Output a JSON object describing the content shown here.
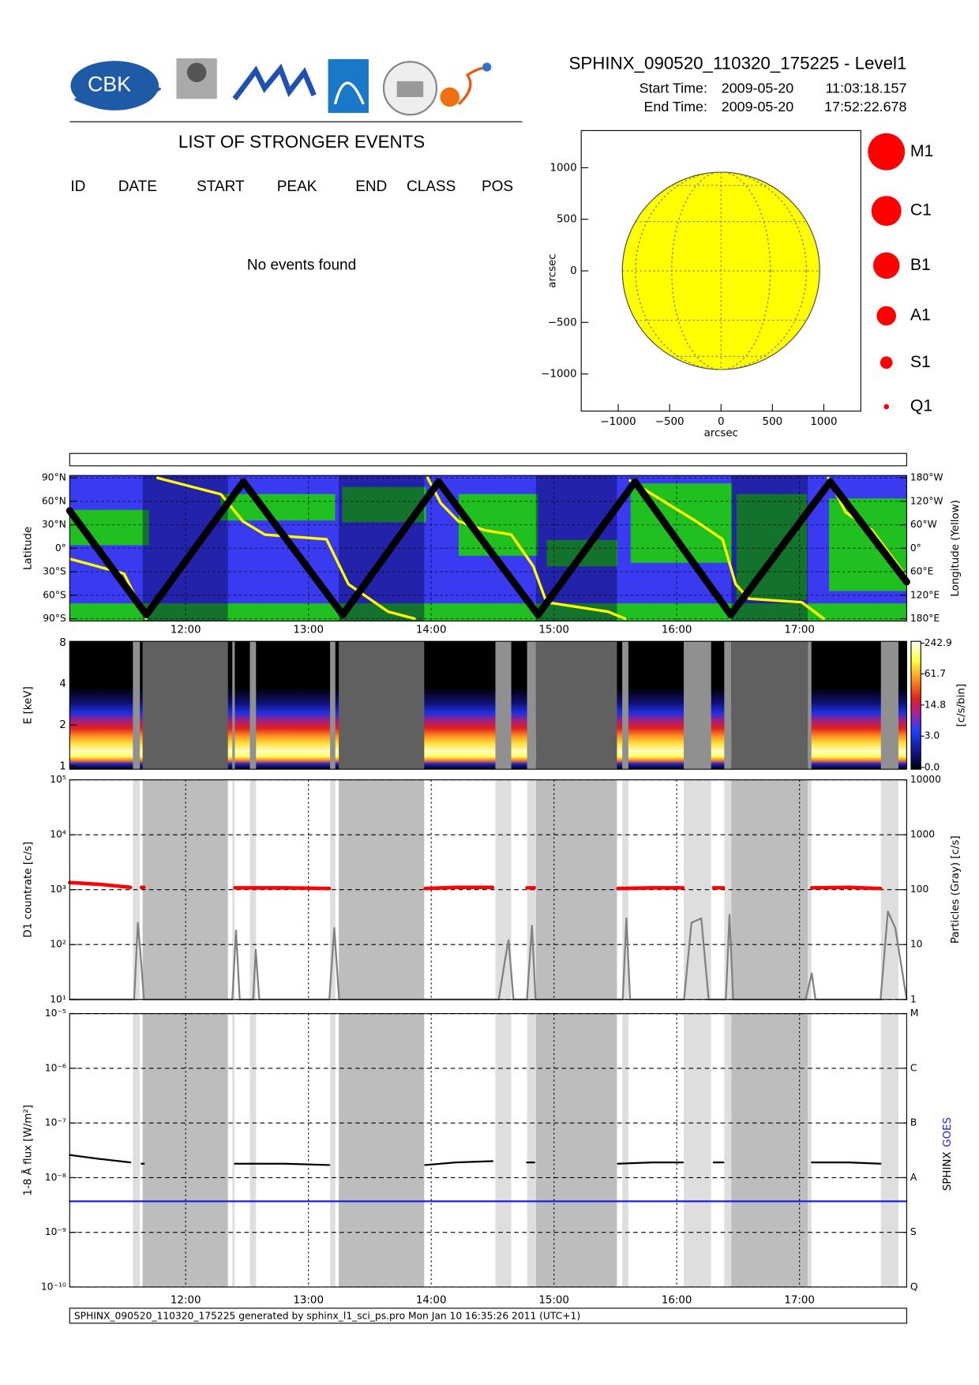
{
  "header": {
    "title": "SPHINX_090520_110320_175225 - Level1",
    "start_label": "Start Time:",
    "start_date": "2009-05-20",
    "start_time": "11:03:18.157",
    "end_label": "End Time:",
    "end_date": "2009-05-20",
    "end_time": "17:52:22.678",
    "logo_text": "CBK"
  },
  "events": {
    "title": "LIST OF STRONGER EVENTS",
    "columns": [
      "ID",
      "DATE",
      "START",
      "PEAK",
      "END",
      "CLASS",
      "POS"
    ],
    "message": "No events found"
  },
  "footer": "SPHINX_090520_110320_175225 generated by sphinx_l1_sci_ps.pro Mon Jan 10 16:35:26 2011 (UTC+1)",
  "shading": {
    "dark": [
      [
        11.649,
        12.344
      ],
      [
        13.247,
        13.943
      ],
      [
        14.853,
        15.513
      ],
      [
        16.444,
        17.068
      ]
    ],
    "light": [
      [
        11.57,
        11.627
      ],
      [
        12.38,
        12.4
      ],
      [
        12.523,
        12.573
      ],
      [
        13.176,
        13.219
      ],
      [
        14.523,
        14.652
      ],
      [
        14.781,
        14.853
      ],
      [
        15.556,
        15.606
      ],
      [
        16.057,
        16.28
      ],
      [
        16.387,
        16.444
      ],
      [
        17.068,
        17.097
      ],
      [
        17.663,
        17.806
      ]
    ]
  },
  "chart_data": [
    {
      "type": "disk_map",
      "xlabel": "arcsec",
      "ylabel": "arcsec",
      "xlim": [
        -1360,
        1360
      ],
      "ylim": [
        -1360,
        1360
      ],
      "xticks": [
        {
          "value": -1000,
          "label": "−1000"
        },
        {
          "value": -500,
          "label": "−500"
        },
        0,
        500,
        1000
      ],
      "yticks": [
        {
          "value": -1000,
          "label": "−1000"
        },
        {
          "value": -500,
          "label": "−500"
        },
        0,
        500,
        1000
      ],
      "disk_radius": 960,
      "color": "#ffff00",
      "legend": {
        "names": [
          "M1",
          "C1",
          "B1",
          "A1",
          "S1",
          "Q1"
        ],
        "color": "#ff0000"
      }
    },
    {
      "type": "orbit",
      "ylabel": "Latitude",
      "y2label": "Longitude (Yellow)",
      "grid": true,
      "xlim": [
        11.055,
        17.873
      ],
      "xticks": [
        {
          "value": 12,
          "label": "12:00"
        },
        {
          "value": 13,
          "label": "13:00"
        },
        {
          "value": 14,
          "label": "14:00"
        },
        {
          "value": 15,
          "label": "15:00"
        },
        {
          "value": 16,
          "label": "16:00"
        },
        {
          "value": 17,
          "label": "17:00"
        }
      ],
      "ylim": [
        -93,
        93
      ],
      "yticks": [
        {
          "value": 90,
          "label": "90°N"
        },
        {
          "value": 60,
          "label": "60°N"
        },
        {
          "value": 30,
          "label": "30°N"
        },
        {
          "value": 0,
          "label": "0°"
        },
        {
          "value": -30,
          "label": "30°S"
        },
        {
          "value": -60,
          "label": "60°S"
        },
        {
          "value": -90,
          "label": "90°S"
        }
      ],
      "y2lim": [
        -186,
        186
      ],
      "y2ticks": [
        {
          "value": 180,
          "label": "180°W"
        },
        {
          "value": 120,
          "label": "120°W"
        },
        {
          "value": 60,
          "label": "60°W"
        },
        {
          "value": 0,
          "label": "0°"
        },
        {
          "value": -60,
          "label": "60°E"
        },
        {
          "value": -120,
          "label": "120°E"
        },
        {
          "value": -180,
          "label": "180°E"
        }
      ],
      "series": [
        {
          "color": "#ffff00",
          "axis": "y2",
          "x": [
            11.068,
            11.498,
            11.677,
            11.72,
            11.771,
            12.287,
            12.466,
            12.645,
            13.147,
            13.326,
            13.649,
            13.864,
            13.92,
            13.971,
            14.079,
            14.222,
            14.437,
            14.652,
            14.832,
            14.939,
            15.441,
            15.58,
            15.6,
            15.62,
            16.158,
            16.373,
            16.48,
            16.588,
            17.018,
            17.197,
            17.215,
            17.233,
            17.376,
            17.591,
            17.864
          ],
          "values": [
            -28,
            -65,
            -180,
            null,
            180,
            138,
            69,
            35,
            23,
            -92,
            -162,
            -180,
            null,
            180,
            115,
            69,
            46,
            35,
            -46,
            -138,
            -162,
            -180,
            null,
            173,
            69,
            23,
            -92,
            -129,
            -138,
            -180,
            null,
            180,
            92,
            46,
            -69
          ]
        },
        {
          "color": "#000000",
          "x": [
            11.055,
            11.68,
            12.47,
            13.28,
            14.06,
            14.87,
            15.66,
            16.44,
            17.25,
            17.873
          ],
          "values": [
            48,
            -85,
            85,
            -85,
            85,
            -85,
            85,
            -85,
            85,
            -43
          ]
        }
      ]
    },
    {
      "type": "heatmap",
      "ylabel": "E [keV]",
      "log": true,
      "xlim": [
        11.055,
        17.873
      ],
      "ylim": [
        0.95,
        8.2
      ],
      "yticks": [
        1,
        2,
        4,
        8
      ],
      "colorbar_label": "[c/s/bin]",
      "colorbar_scale": "log1p",
      "clim": [
        0,
        242.9
      ],
      "colorbar_ticks": [
        {
          "value": 0,
          "label": "0.0"
        },
        {
          "value": 3,
          "label": "3.0"
        },
        14.8,
        61.7,
        242.9
      ]
    },
    {
      "type": "line",
      "ylabel": "D1 countrate [c/s]",
      "y2label": "Particles (Gray) [c/s]",
      "log": true,
      "grid": true,
      "xlim": [
        11.055,
        17.873
      ],
      "ylim": [
        10,
        100000
      ],
      "yticks": [
        {
          "value": 10,
          "label": "10¹"
        },
        {
          "value": 100,
          "label": "10²"
        },
        {
          "value": 1000,
          "label": "10³"
        },
        {
          "value": 10000,
          "label": "10⁴"
        },
        {
          "value": 100000,
          "label": "10⁵"
        }
      ],
      "y2lim": [
        1,
        10000
      ],
      "y2ticks": [
        1,
        10,
        100,
        1000,
        10000
      ],
      "series": [
        {
          "color": "#808080",
          "axis": "y2",
          "x": [
            11.055,
            11.58,
            11.61,
            11.63,
            11.66,
            12.38,
            12.41,
            12.44,
            12.55,
            12.57,
            12.6,
            13.17,
            13.21,
            13.25,
            14.0,
            14.55,
            14.6,
            14.63,
            14.67,
            14.78,
            14.82,
            14.85,
            15.56,
            15.59,
            15.62,
            16.06,
            16.12,
            16.2,
            16.26,
            16.4,
            16.43,
            16.46,
            17.05,
            17.1,
            17.13,
            17.66,
            17.72,
            17.78,
            17.873
          ],
          "values": [
            1,
            1,
            25,
            8,
            1,
            1,
            18,
            1,
            1,
            8,
            1,
            1,
            20,
            1,
            1,
            1,
            5,
            12,
            1,
            1,
            22,
            1,
            1,
            30,
            1,
            1,
            25,
            30,
            1,
            1,
            35,
            1,
            1,
            3,
            1,
            1,
            40,
            20,
            1
          ]
        },
        {
          "color": "#ff0000",
          "x": [
            11.055,
            11.3,
            11.55,
            11.6,
            11.64,
            11.66,
            11.7,
            12.4,
            12.8,
            13.17,
            13.2,
            13.95,
            14.2,
            14.5,
            14.6,
            14.78,
            14.84,
            15.0,
            15.52,
            15.8,
            16.05,
            16.1,
            16.3,
            16.38,
            16.42,
            17.1,
            17.4,
            17.66
          ],
          "values": [
            1350,
            1250,
            1100,
            null,
            1100,
            1100,
            null,
            1080,
            1080,
            1050,
            null,
            1050,
            1100,
            1100,
            null,
            1080,
            1080,
            null,
            1050,
            1080,
            1080,
            null,
            1080,
            1080,
            null,
            1080,
            1100,
            1050
          ]
        }
      ]
    },
    {
      "type": "line",
      "ylabel": "1-8 Å flux [W/m²]",
      "log": true,
      "grid": true,
      "xlim": [
        11.055,
        17.873
      ],
      "xticks": [
        {
          "value": 12,
          "label": "12:00"
        },
        {
          "value": 13,
          "label": "13:00"
        },
        {
          "value": 14,
          "label": "14:00"
        },
        {
          "value": 15,
          "label": "15:00"
        },
        {
          "value": 16,
          "label": "16:00"
        },
        {
          "value": 17,
          "label": "17:00"
        }
      ],
      "ylim": [
        1e-10,
        1e-05
      ],
      "yticks": [
        {
          "value": 1e-10,
          "label": "10⁻¹⁰"
        },
        {
          "value": 1e-09,
          "label": "10⁻⁹"
        },
        {
          "value": 1e-08,
          "label": "10⁻⁸"
        },
        {
          "value": 1e-07,
          "label": "10⁻⁷"
        },
        {
          "value": 1e-06,
          "label": "10⁻⁶"
        },
        {
          "value": 1e-05,
          "label": "10⁻⁵"
        }
      ],
      "y2lim": [
        1e-10,
        1e-05
      ],
      "y2ticks": [
        {
          "value": 1e-10,
          "label": "Q"
        },
        {
          "value": 1e-09,
          "label": "S"
        },
        {
          "value": 1e-08,
          "label": "A"
        },
        {
          "value": 1e-07,
          "label": "B"
        },
        {
          "value": 1e-06,
          "label": "C"
        },
        {
          "value": 1e-05,
          "label": "M"
        }
      ],
      "series": [
        {
          "name": "SPHINX",
          "color": "#000000",
          "x": [
            11.055,
            11.3,
            11.55,
            11.6,
            11.64,
            11.66,
            11.7,
            12.4,
            12.8,
            13.17,
            13.2,
            13.95,
            14.2,
            14.5,
            14.6,
            14.78,
            14.84,
            15.0,
            15.52,
            15.8,
            16.05,
            16.1,
            16.3,
            16.38,
            16.42,
            17.1,
            17.4,
            17.66
          ],
          "values": [
            2.6e-08,
            2.2e-08,
            1.9e-08,
            null,
            1.8e-08,
            1.8e-08,
            null,
            1.8e-08,
            1.8e-08,
            1.7e-08,
            null,
            1.7e-08,
            1.9e-08,
            2e-08,
            null,
            1.9e-08,
            1.9e-08,
            null,
            1.8e-08,
            1.9e-08,
            1.9e-08,
            null,
            1.9e-08,
            1.9e-08,
            null,
            1.9e-08,
            1.9e-08,
            1.8e-08
          ]
        },
        {
          "name": "GOES",
          "color": "#1f1fe0",
          "x": [
            11.055,
            17.873
          ],
          "values": [
            3.7e-09,
            3.7e-09
          ]
        }
      ]
    }
  ]
}
